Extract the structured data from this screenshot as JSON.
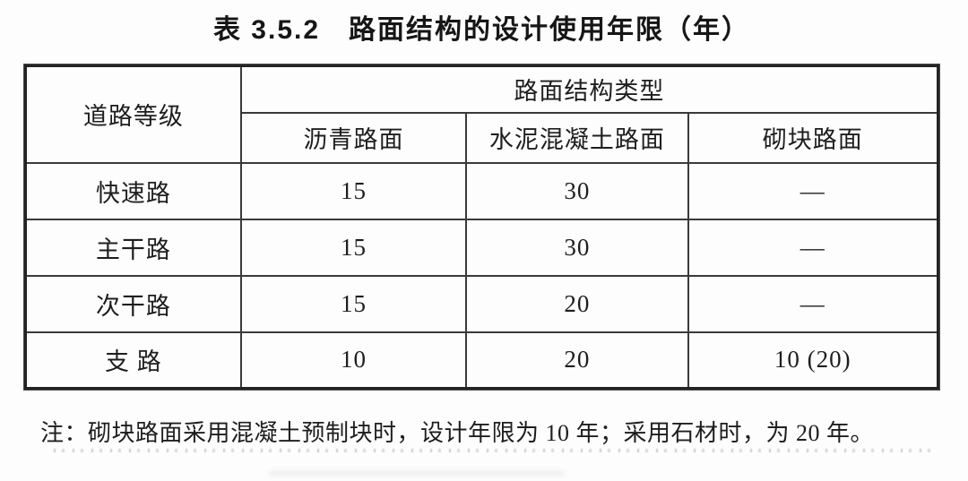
{
  "title": "表 3.5.2　路面结构的设计使用年限（年）",
  "table": {
    "corner_header": "道路等级",
    "group_header": "路面结构类型",
    "columns": [
      "沥青路面",
      "水泥混凝土路面",
      "砌块路面"
    ],
    "rows": [
      {
        "label": "快速路",
        "values": [
          "15",
          "30",
          "—"
        ]
      },
      {
        "label": "主干路",
        "values": [
          "15",
          "30",
          "—"
        ]
      },
      {
        "label": "次干路",
        "values": [
          "15",
          "20",
          "—"
        ]
      },
      {
        "label": "支 路",
        "values": [
          "10",
          "20",
          "10 (20)"
        ]
      }
    ]
  },
  "note": "注：砌块路面采用混凝土预制块时，设计年限为 10 年；采用石材时，为 20 年。",
  "colors": {
    "paper": "#fdfdfd",
    "ink": "#1e1e1e",
    "border": "#3a3a3a"
  }
}
